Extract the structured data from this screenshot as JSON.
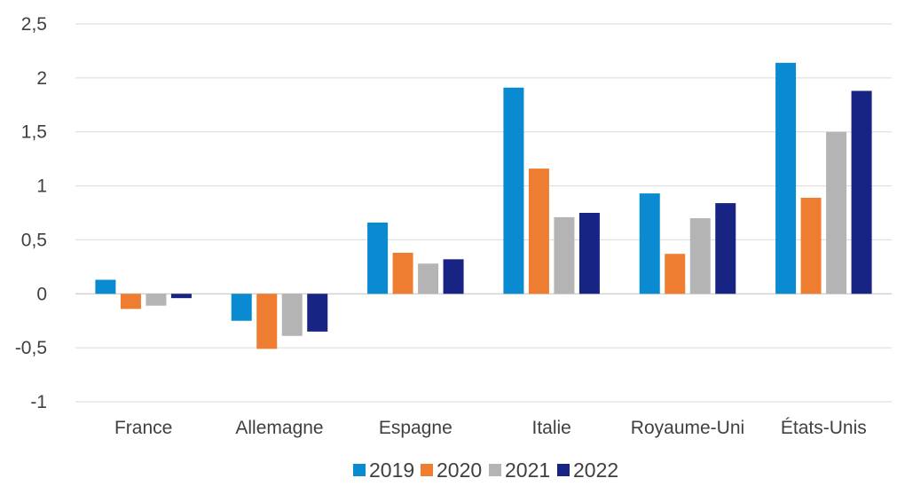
{
  "chart_data": {
    "type": "bar",
    "title": "",
    "xlabel": "",
    "ylabel": "",
    "categories": [
      "France",
      "Allemagne",
      "Espagne",
      "Italie",
      "Royaume-Uni",
      "États-Unis"
    ],
    "series": [
      {
        "name": "2019",
        "color": "#0a8bd1",
        "values": [
          0.13,
          -0.25,
          0.66,
          1.91,
          0.93,
          2.14
        ]
      },
      {
        "name": "2020",
        "color": "#ee7d31",
        "values": [
          -0.14,
          -0.51,
          0.38,
          1.16,
          0.37,
          0.89
        ]
      },
      {
        "name": "2021",
        "color": "#b4b4b4",
        "values": [
          -0.11,
          -0.39,
          0.28,
          0.71,
          0.7,
          1.5
        ]
      },
      {
        "name": "2022",
        "color": "#172484",
        "values": [
          -0.04,
          -0.35,
          0.32,
          0.75,
          0.84,
          1.88
        ]
      }
    ],
    "ylim": [
      -1,
      2.5
    ],
    "yticks": [
      {
        "value": -1,
        "label": "-1"
      },
      {
        "value": -0.5,
        "label": "-0,5"
      },
      {
        "value": 0,
        "label": "0"
      },
      {
        "value": 0.5,
        "label": "0,5"
      },
      {
        "value": 1,
        "label": "1"
      },
      {
        "value": 1.5,
        "label": "1,5"
      },
      {
        "value": 2,
        "label": "2"
      },
      {
        "value": 2.5,
        "label": "2,5"
      }
    ],
    "grid": true,
    "legend_position": "bottom"
  }
}
